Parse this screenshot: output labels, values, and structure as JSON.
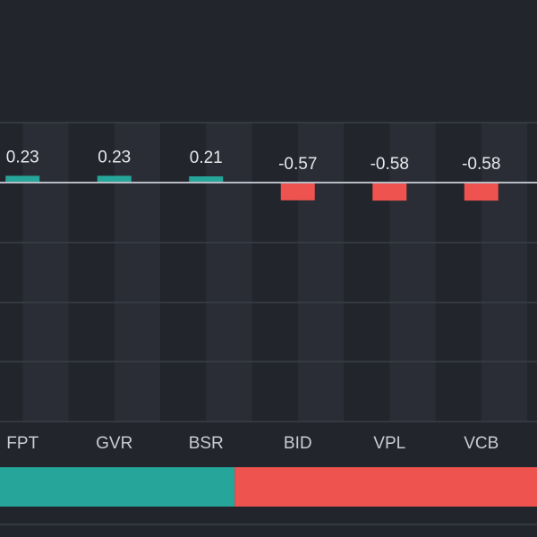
{
  "chart_data": {
    "type": "bar",
    "categories": [
      "FPT",
      "GVR",
      "BSR",
      "BID",
      "VPL",
      "VCB"
    ],
    "values": [
      0.23,
      0.23,
      0.21,
      -0.57,
      -0.58,
      -0.58
    ],
    "value_labels": [
      "0.23",
      "0.23",
      "0.21",
      "-0.57",
      "-0.58",
      "-0.58"
    ],
    "title": "",
    "xlabel": "",
    "ylabel": "",
    "grid": true,
    "legend": "none",
    "colors": {
      "positive": "#26a69a",
      "negative": "#ef5350",
      "background": "#22252c",
      "column_band": "#2a2d35",
      "gridline": "#3a3e47",
      "zero_line": "#b8bcc4"
    },
    "summary_bar": {
      "positive_fraction": 0.437
    }
  }
}
